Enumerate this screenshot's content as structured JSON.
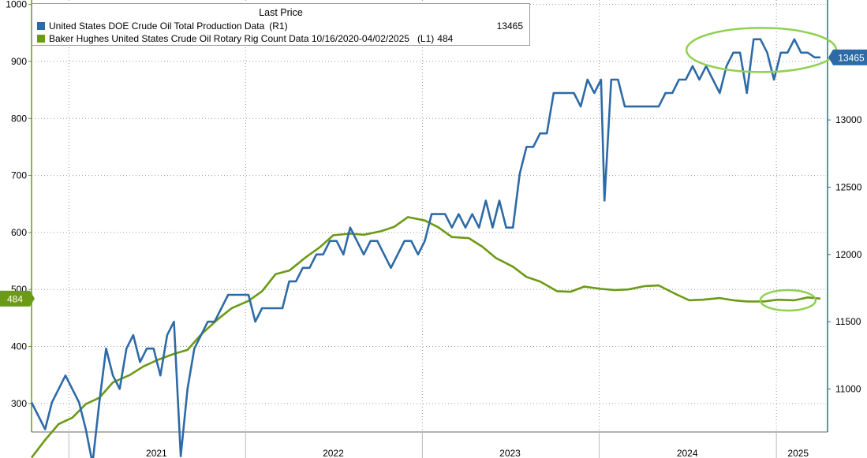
{
  "legend": {
    "header": "Last Price",
    "series": [
      {
        "name": "United States DOE Crude Oil Total Production Data",
        "axis": "(R1)",
        "value": "13465",
        "color": "#2e6aa6"
      },
      {
        "name": "Baker Hughes United States Crude Oil Rotary Rig Count Data 10/16/2020-04/02/2025",
        "axis": "(L1)",
        "value": "484",
        "color": "#6b9a15"
      }
    ]
  },
  "colors": {
    "production": "#2e6aa6",
    "rigs": "#6b9a15",
    "highlight": "#8fd14f",
    "grid": "#9a9a9a"
  },
  "chart_data": {
    "type": "line",
    "x_range": [
      "2020-10-16",
      "2025-04-02"
    ],
    "x_labels": [
      {
        "label": "2021",
        "date": "2021-07-01"
      },
      {
        "label": "2022",
        "date": "2022-07-01"
      },
      {
        "label": "2023",
        "date": "2023-07-01"
      },
      {
        "label": "2024",
        "date": "2024-07-01"
      },
      {
        "label": "2025",
        "date": "2025-02-15"
      }
    ],
    "left_axis": {
      "ylim": [
        250,
        1005
      ],
      "ticks": [
        300,
        400,
        500,
        600,
        700,
        800,
        900,
        1000
      ],
      "last_badge": "484"
    },
    "right_axis": {
      "ylim": [
        10680,
        13880
      ],
      "ticks": [
        11000,
        11500,
        12000,
        12500,
        13000
      ],
      "last_badge": "13465"
    },
    "series": [
      {
        "name": "Baker Hughes United States Crude Oil Rotary Rig Count Data 10/16/2020-04/02/2025",
        "axis": "left",
        "color": "#6b9a15",
        "points": [
          [
            "2020-10-16",
            205
          ],
          [
            "2020-11-13",
            236
          ],
          [
            "2020-12-11",
            264
          ],
          [
            "2021-01-08",
            275
          ],
          [
            "2021-02-05",
            299
          ],
          [
            "2021-03-05",
            310
          ],
          [
            "2021-04-02",
            337
          ],
          [
            "2021-05-07",
            350
          ],
          [
            "2021-06-04",
            365
          ],
          [
            "2021-07-02",
            376
          ],
          [
            "2021-08-06",
            387
          ],
          [
            "2021-09-03",
            394
          ],
          [
            "2021-10-01",
            421
          ],
          [
            "2021-11-05",
            448
          ],
          [
            "2021-12-03",
            467
          ],
          [
            "2022-01-07",
            480
          ],
          [
            "2022-02-04",
            497
          ],
          [
            "2022-03-04",
            527
          ],
          [
            "2022-04-01",
            533
          ],
          [
            "2022-05-06",
            557
          ],
          [
            "2022-06-03",
            574
          ],
          [
            "2022-07-01",
            595
          ],
          [
            "2022-08-05",
            598
          ],
          [
            "2022-09-02",
            596
          ],
          [
            "2022-10-07",
            602
          ],
          [
            "2022-11-04",
            610
          ],
          [
            "2022-12-02",
            627
          ],
          [
            "2023-01-06",
            621
          ],
          [
            "2023-02-03",
            609
          ],
          [
            "2023-03-03",
            592
          ],
          [
            "2023-04-07",
            590
          ],
          [
            "2023-05-05",
            575
          ],
          [
            "2023-06-02",
            555
          ],
          [
            "2023-07-07",
            540
          ],
          [
            "2023-08-04",
            522
          ],
          [
            "2023-09-01",
            514
          ],
          [
            "2023-10-06",
            497
          ],
          [
            "2023-11-03",
            496
          ],
          [
            "2023-12-01",
            505
          ],
          [
            "2024-01-05",
            501
          ],
          [
            "2024-02-02",
            499
          ],
          [
            "2024-03-01",
            500
          ],
          [
            "2024-04-05",
            506
          ],
          [
            "2024-05-03",
            507
          ],
          [
            "2024-06-07",
            492
          ],
          [
            "2024-07-05",
            481
          ],
          [
            "2024-08-02",
            482
          ],
          [
            "2024-09-06",
            485
          ],
          [
            "2024-10-04",
            481
          ],
          [
            "2024-11-01",
            479
          ],
          [
            "2024-12-06",
            479
          ],
          [
            "2025-01-03",
            482
          ],
          [
            "2025-02-07",
            481
          ],
          [
            "2025-03-07",
            486
          ],
          [
            "2025-04-02",
            484
          ]
        ]
      },
      {
        "name": "United States DOE Crude Oil Total Production Data",
        "axis": "right",
        "color": "#2e6aa6",
        "points": [
          [
            "2020-10-16",
            10900
          ],
          [
            "2020-10-30",
            10800
          ],
          [
            "2020-11-13",
            10700
          ],
          [
            "2020-11-27",
            10900
          ],
          [
            "2020-12-11",
            11000
          ],
          [
            "2020-12-25",
            11100
          ],
          [
            "2021-01-08",
            11000
          ],
          [
            "2021-01-22",
            10900
          ],
          [
            "2021-02-05",
            10700
          ],
          [
            "2021-02-19",
            10000
          ],
          [
            "2021-03-05",
            10900
          ],
          [
            "2021-03-19",
            11300
          ],
          [
            "2021-04-02",
            11100
          ],
          [
            "2021-04-16",
            11000
          ],
          [
            "2021-04-30",
            11300
          ],
          [
            "2021-05-14",
            11400
          ],
          [
            "2021-05-28",
            11200
          ],
          [
            "2021-06-11",
            11300
          ],
          [
            "2021-06-25",
            11300
          ],
          [
            "2021-07-09",
            11100
          ],
          [
            "2021-07-23",
            11400
          ],
          [
            "2021-08-06",
            11500
          ],
          [
            "2021-08-20",
            10500
          ],
          [
            "2021-09-03",
            11000
          ],
          [
            "2021-09-17",
            11300
          ],
          [
            "2021-10-01",
            11400
          ],
          [
            "2021-10-15",
            11500
          ],
          [
            "2021-10-29",
            11500
          ],
          [
            "2021-11-12",
            11600
          ],
          [
            "2021-11-26",
            11700
          ],
          [
            "2021-12-10",
            11700
          ],
          [
            "2021-12-24",
            11700
          ],
          [
            "2022-01-07",
            11700
          ],
          [
            "2022-01-21",
            11500
          ],
          [
            "2022-02-04",
            11600
          ],
          [
            "2022-02-18",
            11600
          ],
          [
            "2022-03-04",
            11600
          ],
          [
            "2022-03-18",
            11600
          ],
          [
            "2022-04-01",
            11800
          ],
          [
            "2022-04-15",
            11800
          ],
          [
            "2022-04-29",
            11900
          ],
          [
            "2022-05-13",
            11900
          ],
          [
            "2022-05-27",
            12000
          ],
          [
            "2022-06-10",
            12000
          ],
          [
            "2022-06-24",
            12100
          ],
          [
            "2022-07-08",
            12100
          ],
          [
            "2022-07-22",
            12000
          ],
          [
            "2022-08-05",
            12200
          ],
          [
            "2022-08-19",
            12100
          ],
          [
            "2022-09-02",
            12000
          ],
          [
            "2022-09-16",
            12100
          ],
          [
            "2022-09-30",
            12100
          ],
          [
            "2022-10-14",
            12000
          ],
          [
            "2022-10-28",
            11900
          ],
          [
            "2022-11-11",
            12000
          ],
          [
            "2022-11-25",
            12100
          ],
          [
            "2022-12-09",
            12100
          ],
          [
            "2022-12-23",
            12000
          ],
          [
            "2023-01-06",
            12100
          ],
          [
            "2023-01-20",
            12300
          ],
          [
            "2023-02-03",
            12300
          ],
          [
            "2023-02-17",
            12300
          ],
          [
            "2023-03-03",
            12200
          ],
          [
            "2023-03-17",
            12300
          ],
          [
            "2023-03-31",
            12200
          ],
          [
            "2023-04-14",
            12300
          ],
          [
            "2023-04-28",
            12200
          ],
          [
            "2023-05-12",
            12400
          ],
          [
            "2023-05-26",
            12200
          ],
          [
            "2023-06-09",
            12400
          ],
          [
            "2023-06-23",
            12200
          ],
          [
            "2023-07-07",
            12200
          ],
          [
            "2023-07-21",
            12600
          ],
          [
            "2023-08-04",
            12800
          ],
          [
            "2023-08-18",
            12800
          ],
          [
            "2023-09-01",
            12900
          ],
          [
            "2023-09-15",
            12900
          ],
          [
            "2023-09-29",
            13200
          ],
          [
            "2023-10-13",
            13200
          ],
          [
            "2023-10-27",
            13200
          ],
          [
            "2023-11-10",
            13200
          ],
          [
            "2023-11-24",
            13100
          ],
          [
            "2023-12-08",
            13300
          ],
          [
            "2023-12-22",
            13200
          ],
          [
            "2024-01-05",
            13300
          ],
          [
            "2024-01-12",
            12400
          ],
          [
            "2024-01-26",
            13300
          ],
          [
            "2024-02-09",
            13300
          ],
          [
            "2024-02-23",
            13100
          ],
          [
            "2024-03-08",
            13100
          ],
          [
            "2024-03-22",
            13100
          ],
          [
            "2024-04-05",
            13100
          ],
          [
            "2024-04-19",
            13100
          ],
          [
            "2024-05-03",
            13100
          ],
          [
            "2024-05-17",
            13200
          ],
          [
            "2024-05-31",
            13200
          ],
          [
            "2024-06-14",
            13300
          ],
          [
            "2024-06-28",
            13300
          ],
          [
            "2024-07-12",
            13400
          ],
          [
            "2024-07-26",
            13300
          ],
          [
            "2024-08-09",
            13400
          ],
          [
            "2024-08-23",
            13300
          ],
          [
            "2024-09-06",
            13200
          ],
          [
            "2024-09-20",
            13400
          ],
          [
            "2024-10-04",
            13500
          ],
          [
            "2024-10-18",
            13500
          ],
          [
            "2024-11-01",
            13200
          ],
          [
            "2024-11-15",
            13600
          ],
          [
            "2024-11-29",
            13600
          ],
          [
            "2024-12-13",
            13500
          ],
          [
            "2024-12-27",
            13300
          ],
          [
            "2025-01-10",
            13500
          ],
          [
            "2025-01-24",
            13500
          ],
          [
            "2025-02-07",
            13600
          ],
          [
            "2025-02-21",
            13500
          ],
          [
            "2025-03-07",
            13500
          ],
          [
            "2025-03-21",
            13465
          ],
          [
            "2025-04-02",
            13465
          ]
        ]
      }
    ],
    "annotations": [
      {
        "type": "ellipse",
        "note": "highlight of recent production peak",
        "center": [
          "2024-12-01",
          13520
        ]
      },
      {
        "type": "ellipse",
        "note": "highlight of recent rig count",
        "center": [
          "2025-01-25",
          481
        ]
      }
    ]
  }
}
